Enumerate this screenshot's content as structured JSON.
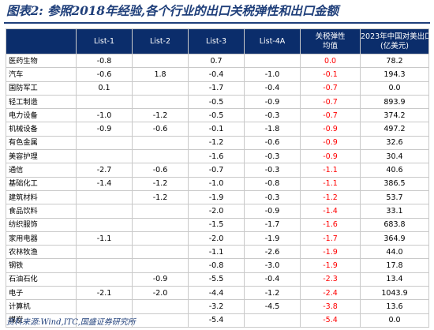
{
  "title": "图表2:  参照2018年经验,各个行业的出口关税弹性和出口金额",
  "table": {
    "columns": [
      {
        "id": "industry",
        "label": ""
      },
      {
        "id": "list1",
        "label": "List-1"
      },
      {
        "id": "list2",
        "label": "List-2"
      },
      {
        "id": "list3",
        "label": "List-3"
      },
      {
        "id": "list4a",
        "label": "List-4A"
      },
      {
        "id": "elasticity",
        "label": "关税弹性",
        "label2": "均值"
      },
      {
        "id": "exports",
        "label": "2023年中国对美出口",
        "label2": "(亿美元)"
      }
    ],
    "rows": [
      {
        "industry": "医药生物",
        "list1": "-0.8",
        "list2": "",
        "list3": "0.7",
        "list4a": "",
        "elasticity": "0.0",
        "exports": "78.2"
      },
      {
        "industry": "汽车",
        "list1": "-0.6",
        "list2": "1.8",
        "list3": "-0.4",
        "list4a": "-1.0",
        "elasticity": "-0.1",
        "exports": "194.3"
      },
      {
        "industry": "国防军工",
        "list1": "0.1",
        "list2": "",
        "list3": "-1.7",
        "list4a": "-0.4",
        "elasticity": "-0.7",
        "exports": "0.0"
      },
      {
        "industry": "轻工制造",
        "list1": "",
        "list2": "",
        "list3": "-0.5",
        "list4a": "-0.9",
        "elasticity": "-0.7",
        "exports": "893.9"
      },
      {
        "industry": "电力设备",
        "list1": "-1.0",
        "list2": "-1.2",
        "list3": "-0.5",
        "list4a": "-0.3",
        "elasticity": "-0.7",
        "exports": "374.2"
      },
      {
        "industry": "机械设备",
        "list1": "-0.9",
        "list2": "-0.6",
        "list3": "-0.1",
        "list4a": "-1.8",
        "elasticity": "-0.9",
        "exports": "497.2"
      },
      {
        "industry": "有色金属",
        "list1": "",
        "list2": "",
        "list3": "-1.2",
        "list4a": "-0.6",
        "elasticity": "-0.9",
        "exports": "32.6"
      },
      {
        "industry": "美容护理",
        "list1": "",
        "list2": "",
        "list3": "-1.6",
        "list4a": "-0.3",
        "elasticity": "-0.9",
        "exports": "30.4"
      },
      {
        "industry": "通信",
        "list1": "-2.7",
        "list2": "-0.6",
        "list3": "-0.7",
        "list4a": "-0.3",
        "elasticity": "-1.1",
        "exports": "40.6"
      },
      {
        "industry": "基础化工",
        "list1": "-1.4",
        "list2": "-1.2",
        "list3": "-1.0",
        "list4a": "-0.8",
        "elasticity": "-1.1",
        "exports": "386.5"
      },
      {
        "industry": "建筑材料",
        "list1": "",
        "list2": "-1.2",
        "list3": "-1.9",
        "list4a": "-0.3",
        "elasticity": "-1.2",
        "exports": "53.7"
      },
      {
        "industry": "食品饮料",
        "list1": "",
        "list2": "",
        "list3": "-2.0",
        "list4a": "-0.9",
        "elasticity": "-1.4",
        "exports": "33.1"
      },
      {
        "industry": "纺织服饰",
        "list1": "",
        "list2": "",
        "list3": "-1.5",
        "list4a": "-1.7",
        "elasticity": "-1.6",
        "exports": "683.8"
      },
      {
        "industry": "家用电器",
        "list1": "-1.1",
        "list2": "",
        "list3": "-2.0",
        "list4a": "-1.9",
        "elasticity": "-1.7",
        "exports": "364.9"
      },
      {
        "industry": "农林牧渔",
        "list1": "",
        "list2": "",
        "list3": "-1.1",
        "list4a": "-2.6",
        "elasticity": "-1.9",
        "exports": "44.0"
      },
      {
        "industry": "钢铁",
        "list1": "",
        "list2": "",
        "list3": "-0.8",
        "list4a": "-3.0",
        "elasticity": "-1.9",
        "exports": "17.8"
      },
      {
        "industry": "石油石化",
        "list1": "",
        "list2": "-0.9",
        "list3": "-5.5",
        "list4a": "-0.4",
        "elasticity": "-2.3",
        "exports": "13.4"
      },
      {
        "industry": "电子",
        "list1": "-2.1",
        "list2": "-2.0",
        "list3": "-4.4",
        "list4a": "-1.2",
        "elasticity": "-2.4",
        "exports": "1043.9"
      },
      {
        "industry": "计算机",
        "list1": "",
        "list2": "",
        "list3": "-3.2",
        "list4a": "-4.5",
        "elasticity": "-3.8",
        "exports": "13.6"
      },
      {
        "industry": "煤炭",
        "list1": "",
        "list2": "",
        "list3": "-5.4",
        "list4a": "",
        "elasticity": "-5.4",
        "exports": "0.0"
      }
    ]
  },
  "source": "资料来源:Wind,ITC,国盛证券研究所",
  "colors": {
    "header_bg": "#0b2d6b",
    "title_blue": "#1f3f7a",
    "elasticity_red": "#ff0000"
  }
}
